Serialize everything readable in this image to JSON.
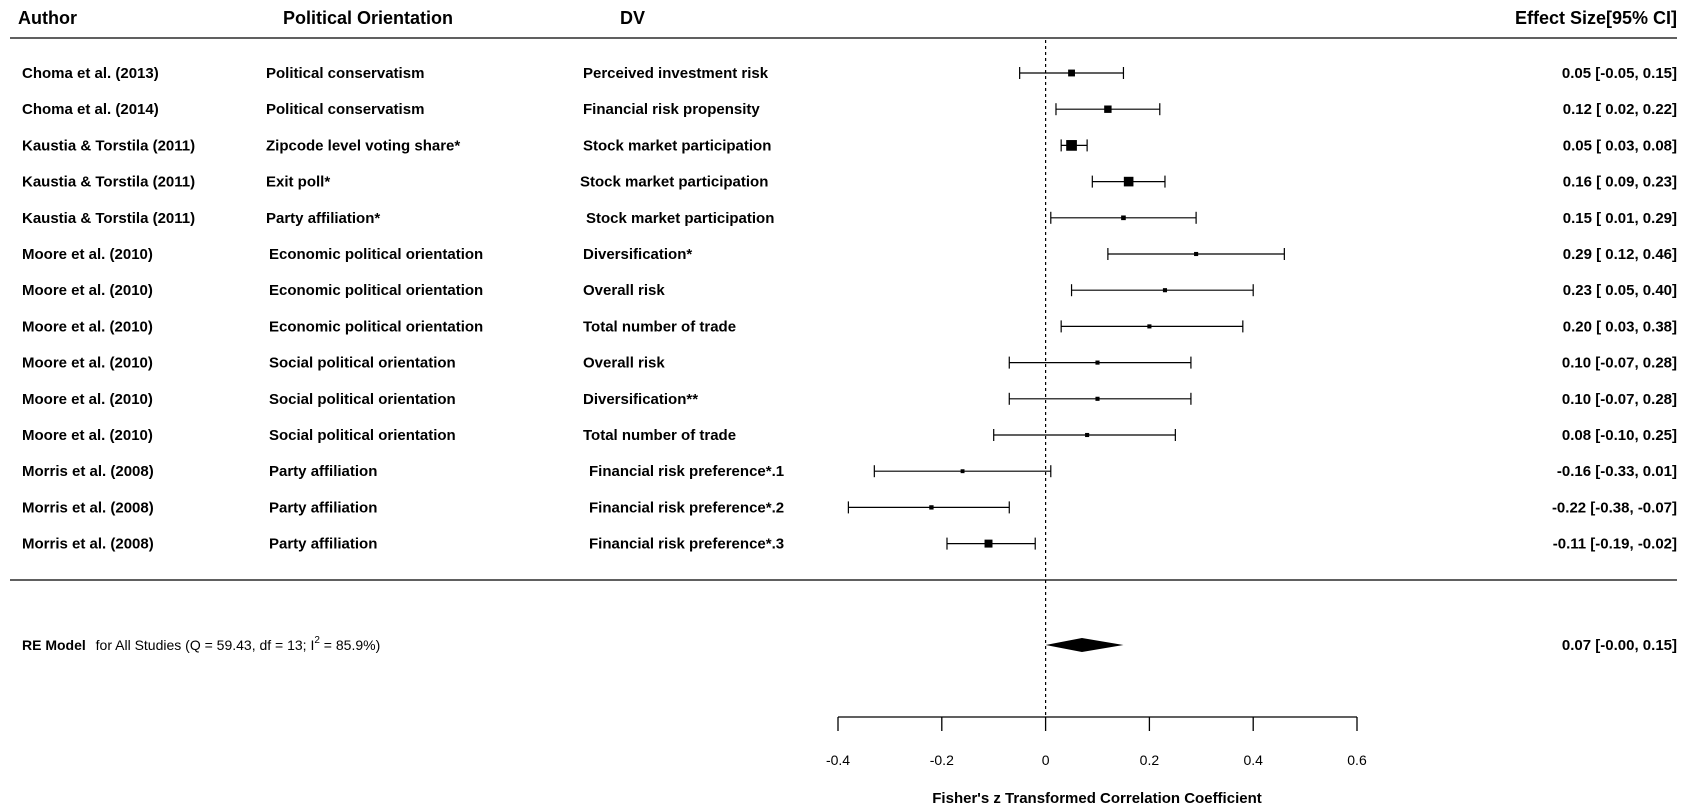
{
  "chart_data": {
    "type": "forest",
    "headers": {
      "author": "Author",
      "orientation": "Political Orientation",
      "dv": "DV",
      "effect": "Effect Size[95% CI]"
    },
    "studies": [
      {
        "author": "Choma et al. (2013)",
        "orientation": "Political conservatism",
        "dv": "Perceived investment risk",
        "est": 0.05,
        "lo": -0.05,
        "hi": 0.15,
        "ci_text": "0.05 [-0.05,  0.15]",
        "weight": 0.35
      },
      {
        "author": "Choma et al. (2014)",
        "orientation": "Political conservatism",
        "dv": "Financial risk propensity",
        "est": 0.12,
        "lo": 0.02,
        "hi": 0.22,
        "ci_text": "0.12 [ 0.02,  0.22]",
        "weight": 0.4
      },
      {
        "author": "Kaustia & Torstila (2011)",
        "orientation": "Zipcode level voting share*",
        "dv": "Stock market participation",
        "est": 0.05,
        "lo": 0.03,
        "hi": 0.08,
        "ci_text": "0.05 [ 0.03,  0.08]",
        "weight": 0.7
      },
      {
        "author": "Kaustia & Torstila (2011)",
        "orientation": "Exit poll*",
        "dv": "Stock market participation",
        "est": 0.16,
        "lo": 0.09,
        "hi": 0.23,
        "ci_text": "0.16 [ 0.09,  0.23]",
        "weight": 0.6
      },
      {
        "author": "Kaustia & Torstila (2011)",
        "orientation": "Party affiliation*",
        "dv": "Stock market participation",
        "est": 0.15,
        "lo": 0.01,
        "hi": 0.29,
        "ci_text": "0.15 [ 0.01,  0.29]",
        "weight": 0.15
      },
      {
        "author": "Moore et al. (2010)",
        "orientation": "Economic political orientation",
        "dv": "Diversification*",
        "est": 0.29,
        "lo": 0.12,
        "hi": 0.46,
        "ci_text": "0.29 [ 0.12,  0.46]",
        "weight": 0.1
      },
      {
        "author": "Moore et al. (2010)",
        "orientation": "Economic political orientation",
        "dv": "Overall risk",
        "est": 0.23,
        "lo": 0.05,
        "hi": 0.4,
        "ci_text": "0.23 [ 0.05,  0.40]",
        "weight": 0.1
      },
      {
        "author": "Moore et al. (2010)",
        "orientation": "Economic political orientation",
        "dv": "Total number of trade",
        "est": 0.2,
        "lo": 0.03,
        "hi": 0.38,
        "ci_text": "0.20 [ 0.03,  0.38]",
        "weight": 0.1
      },
      {
        "author": "Moore et al. (2010)",
        "orientation": "Social political orientation",
        "dv": "Overall risk",
        "est": 0.1,
        "lo": -0.07,
        "hi": 0.28,
        "ci_text": "0.10 [-0.07,  0.28]",
        "weight": 0.1
      },
      {
        "author": "Moore et al. (2010)",
        "orientation": "Social political orientation",
        "dv": "Diversification**",
        "est": 0.1,
        "lo": -0.07,
        "hi": 0.28,
        "ci_text": "0.10 [-0.07,  0.28]",
        "weight": 0.1
      },
      {
        "author": "Moore et al. (2010)",
        "orientation": "Social political orientation",
        "dv": "Total number of trade",
        "est": 0.08,
        "lo": -0.1,
        "hi": 0.25,
        "ci_text": "0.08 [-0.10,  0.25]",
        "weight": 0.1
      },
      {
        "author": "Morris et al. (2008)",
        "orientation": "Party affiliation",
        "dv": "Financial risk preference*.1",
        "est": -0.16,
        "lo": -0.33,
        "hi": 0.01,
        "ci_text": "-0.16 [-0.33,  0.01]",
        "weight": 0.08
      },
      {
        "author": "Morris et al. (2008)",
        "orientation": "Party affiliation",
        "dv": "Financial risk preference*.2",
        "est": -0.22,
        "lo": -0.38,
        "hi": -0.07,
        "ci_text": "-0.22 [-0.38, -0.07]",
        "weight": 0.12
      },
      {
        "author": "Morris et al. (2008)",
        "orientation": "Party affiliation",
        "dv": "Financial risk preference*.3",
        "est": -0.11,
        "lo": -0.19,
        "hi": -0.02,
        "ci_text": "-0.11 [-0.19, -0.02]",
        "weight": 0.45
      }
    ],
    "summary": {
      "label_bold": "RE Model",
      "label_rest": "for All Studies (Q = 59.43, df = 13; I",
      "superscript": "2",
      "label_end": " = 85.9%)",
      "est": 0.07,
      "lo": -0.0,
      "hi": 0.15,
      "ci_text": "0.07 [-0.00,  0.15]"
    },
    "xaxis": {
      "label": "Fisher's z Transformed Correlation Coefficient",
      "xlim": [
        -0.4,
        0.6
      ],
      "ticks": [
        -0.4,
        -0.2,
        0,
        0.2,
        0.4,
        0.6
      ],
      "tick_labels": [
        "-0.4",
        "-0.2",
        "0",
        "0.2",
        "0.4",
        "0.6"
      ]
    },
    "reference_line": 0,
    "reference_style": "dotted"
  }
}
